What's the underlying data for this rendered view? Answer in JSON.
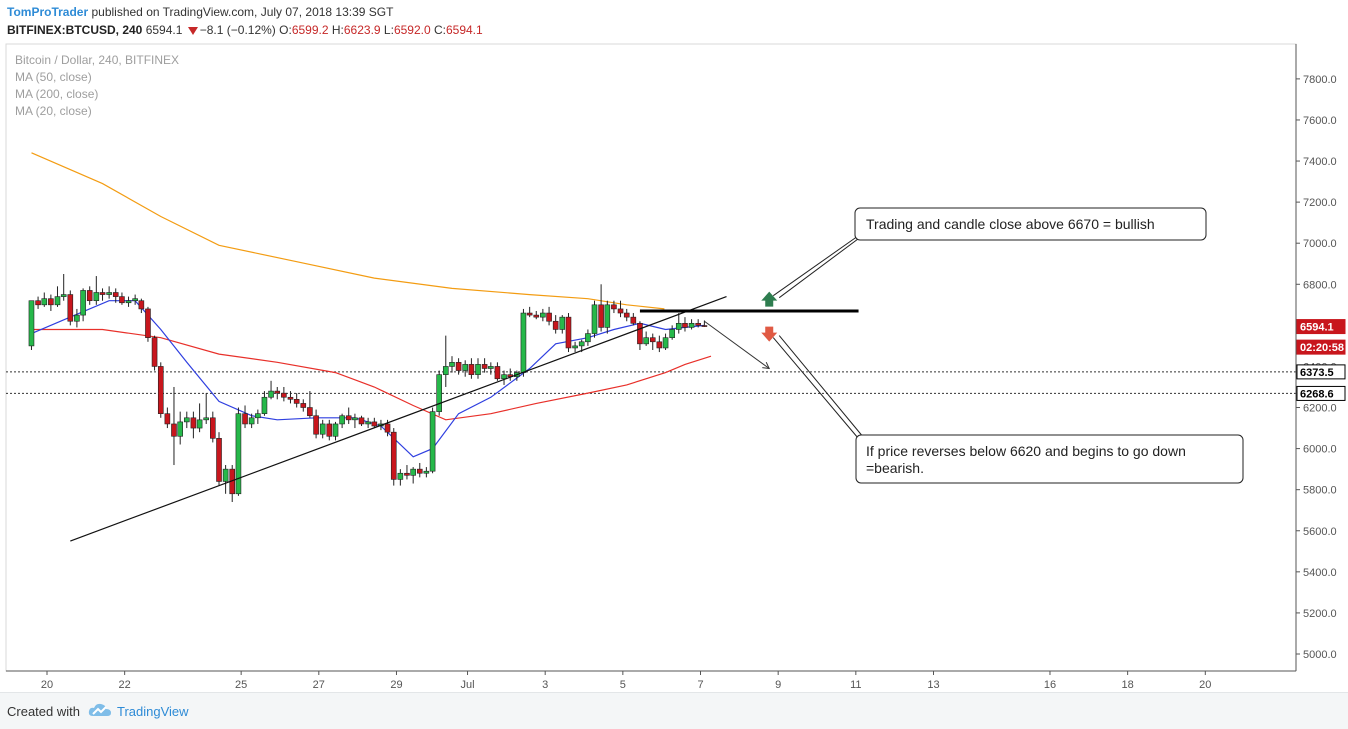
{
  "header": {
    "author": "TomProTrader",
    "published": "published on TradingView.com, July 07, 2018 13:39 SGT",
    "symbol": "BITFINEX:BTCUSD, 240",
    "last": "6594.1",
    "change": "−8.1 (−0.12%)",
    "open_label": "O:",
    "open": "6599.2",
    "high_label": "H:",
    "high": "6623.9",
    "low_label": "L:",
    "low": "6592.0",
    "close_label": "C:",
    "close": "6594.1"
  },
  "legend": {
    "title": "Bitcoin / Dollar, 240, BITFINEX",
    "ma50": "MA (50, close)",
    "ma200": "MA (200, close)",
    "ma20": "MA (20, close)"
  },
  "footer": {
    "created_with": "Created with",
    "brand": "TradingView"
  },
  "colors": {
    "up": "#26b84a",
    "down": "#c8161d",
    "wick": "#222222",
    "ma200": "#f39c12",
    "ma50": "#e8302a",
    "ma20": "#2f3fe0",
    "brand": "#2e8bd6",
    "arrow_up": "#2e7d4f",
    "arrow_down": "#e05a44"
  },
  "chart_data": {
    "type": "candlestick",
    "symbol": "BITFINEX:BTCUSD",
    "interval": "240",
    "y_range": [
      4900,
      8000
    ],
    "y_ticks": [
      "7800.0",
      "7600.0",
      "7400.0",
      "7200.0",
      "7000.0",
      "6800.0",
      "6600.0",
      "6400.0",
      "6200.0",
      "6000.0",
      "5800.0",
      "5600.0",
      "5400.0",
      "5200.0",
      "5000.0"
    ],
    "x_range": [
      19.6,
      22.0
    ],
    "x_ticks": [
      {
        "label": "20",
        "x": 20
      },
      {
        "label": "22",
        "x": 22
      },
      {
        "label": "25",
        "x": 25
      },
      {
        "label": "27",
        "x": 27
      },
      {
        "label": "29",
        "x": 29
      },
      {
        "label": "Jul",
        "x": 30.83
      },
      {
        "label": "3",
        "x": 32.83
      },
      {
        "label": "5",
        "x": 34.83
      },
      {
        "label": "7",
        "x": 36.83
      },
      {
        "label": "9",
        "x": 38.83
      },
      {
        "label": "11",
        "x": 40.83
      },
      {
        "label": "13",
        "x": 42.83
      },
      {
        "label": "16",
        "x": 45.83
      },
      {
        "label": "18",
        "x": 47.83
      },
      {
        "label": "20",
        "x": 49.83
      }
    ],
    "price_labels": [
      {
        "text": "6594.1",
        "value": 6594.1,
        "style": "current"
      },
      {
        "text": "02:20:58",
        "value": 6494,
        "style": "current"
      },
      {
        "text": "6373.5",
        "value": 6373.5,
        "style": "level"
      },
      {
        "text": "6268.6",
        "value": 6268.6,
        "style": "level"
      }
    ],
    "levels": [
      6373.5,
      6268.6
    ],
    "candles": [
      [
        19.6,
        6500,
        6720,
        6480,
        6720
      ],
      [
        19.77,
        6720,
        6740,
        6680,
        6700
      ],
      [
        19.93,
        6700,
        6760,
        6690,
        6730
      ],
      [
        20.1,
        6730,
        6750,
        6670,
        6700
      ],
      [
        20.27,
        6700,
        6790,
        6690,
        6740
      ],
      [
        20.43,
        6740,
        6850,
        6720,
        6750
      ],
      [
        20.6,
        6750,
        6770,
        6600,
        6620
      ],
      [
        20.77,
        6620,
        6680,
        6590,
        6650
      ],
      [
        20.93,
        6650,
        6780,
        6620,
        6770
      ],
      [
        21.1,
        6770,
        6790,
        6700,
        6720
      ],
      [
        21.27,
        6720,
        6840,
        6700,
        6760
      ],
      [
        21.43,
        6760,
        6780,
        6720,
        6750
      ],
      [
        21.6,
        6750,
        6790,
        6730,
        6760
      ],
      [
        21.77,
        6760,
        6780,
        6710,
        6740
      ],
      [
        21.93,
        6740,
        6760,
        6700,
        6710
      ],
      [
        22.1,
        6710,
        6740,
        6690,
        6720
      ],
      [
        22.27,
        6720,
        6750,
        6700,
        6730
      ],
      [
        22.43,
        6720,
        6730,
        6660,
        6680
      ],
      [
        22.6,
        6680,
        6690,
        6520,
        6540
      ],
      [
        22.77,
        6540,
        6550,
        6380,
        6400
      ],
      [
        22.93,
        6400,
        6420,
        6150,
        6170
      ],
      [
        23.1,
        6170,
        6200,
        6100,
        6120
      ],
      [
        23.27,
        6120,
        6300,
        5920,
        6060
      ],
      [
        23.43,
        6060,
        6180,
        6020,
        6130
      ],
      [
        23.6,
        6130,
        6180,
        6100,
        6150
      ],
      [
        23.77,
        6150,
        6180,
        6050,
        6100
      ],
      [
        23.93,
        6100,
        6220,
        6080,
        6140
      ],
      [
        24.1,
        6140,
        6270,
        6120,
        6150
      ],
      [
        24.27,
        6150,
        6180,
        6030,
        6050
      ],
      [
        24.43,
        6050,
        6080,
        5820,
        5840
      ],
      [
        24.6,
        5840,
        5920,
        5780,
        5900
      ],
      [
        24.77,
        5900,
        5920,
        5740,
        5780
      ],
      [
        24.93,
        5780,
        6200,
        5770,
        6170
      ],
      [
        25.1,
        6170,
        6210,
        6100,
        6120
      ],
      [
        25.27,
        6120,
        6170,
        6100,
        6150
      ],
      [
        25.43,
        6150,
        6190,
        6120,
        6170
      ],
      [
        25.6,
        6170,
        6280,
        6160,
        6250
      ],
      [
        25.77,
        6250,
        6330,
        6240,
        6280
      ],
      [
        25.93,
        6280,
        6300,
        6240,
        6270
      ],
      [
        26.1,
        6270,
        6300,
        6230,
        6250
      ],
      [
        26.27,
        6250,
        6280,
        6220,
        6240
      ],
      [
        26.43,
        6240,
        6270,
        6200,
        6220
      ],
      [
        26.6,
        6220,
        6240,
        6180,
        6200
      ],
      [
        26.77,
        6200,
        6280,
        6150,
        6160
      ],
      [
        26.93,
        6160,
        6190,
        6050,
        6070
      ],
      [
        27.1,
        6070,
        6140,
        6050,
        6120
      ],
      [
        27.27,
        6120,
        6140,
        6040,
        6060
      ],
      [
        27.43,
        6060,
        6130,
        6040,
        6120
      ],
      [
        27.6,
        6120,
        6170,
        6100,
        6160
      ],
      [
        27.77,
        6160,
        6200,
        6120,
        6140
      ],
      [
        27.93,
        6140,
        6170,
        6100,
        6150
      ],
      [
        28.1,
        6150,
        6160,
        6110,
        6120
      ],
      [
        28.27,
        6120,
        6150,
        6100,
        6130
      ],
      [
        28.43,
        6130,
        6150,
        6100,
        6110
      ],
      [
        28.6,
        6110,
        6140,
        6090,
        6120
      ],
      [
        28.77,
        6120,
        6140,
        6060,
        6080
      ],
      [
        28.93,
        6080,
        6100,
        5820,
        5850
      ],
      [
        29.1,
        5850,
        5900,
        5820,
        5880
      ],
      [
        29.27,
        5880,
        5920,
        5850,
        5870
      ],
      [
        29.43,
        5870,
        5910,
        5830,
        5900
      ],
      [
        29.6,
        5900,
        5930,
        5860,
        5880
      ],
      [
        29.77,
        5880,
        5910,
        5860,
        5890
      ],
      [
        29.93,
        5890,
        6200,
        5880,
        6180
      ],
      [
        30.1,
        6180,
        6380,
        6160,
        6360
      ],
      [
        30.27,
        6360,
        6550,
        6300,
        6400
      ],
      [
        30.43,
        6400,
        6450,
        6370,
        6420
      ],
      [
        30.6,
        6420,
        6440,
        6360,
        6380
      ],
      [
        30.77,
        6380,
        6430,
        6350,
        6410
      ],
      [
        30.93,
        6410,
        6440,
        6340,
        6360
      ],
      [
        31.1,
        6360,
        6440,
        6340,
        6410
      ],
      [
        31.27,
        6410,
        6440,
        6370,
        6390
      ],
      [
        31.43,
        6390,
        6420,
        6360,
        6400
      ],
      [
        31.6,
        6400,
        6420,
        6330,
        6340
      ],
      [
        31.77,
        6340,
        6380,
        6310,
        6360
      ],
      [
        31.93,
        6360,
        6390,
        6330,
        6350
      ],
      [
        32.1,
        6350,
        6380,
        6330,
        6370
      ],
      [
        32.27,
        6370,
        6680,
        6350,
        6660
      ],
      [
        32.43,
        6660,
        6690,
        6640,
        6650
      ],
      [
        32.6,
        6650,
        6670,
        6630,
        6640
      ],
      [
        32.77,
        6640,
        6680,
        6620,
        6660
      ],
      [
        32.93,
        6660,
        6690,
        6600,
        6620
      ],
      [
        33.1,
        6620,
        6650,
        6560,
        6580
      ],
      [
        33.27,
        6580,
        6650,
        6560,
        6640
      ],
      [
        33.43,
        6640,
        6660,
        6470,
        6490
      ],
      [
        33.6,
        6490,
        6520,
        6470,
        6500
      ],
      [
        33.77,
        6500,
        6530,
        6470,
        6520
      ],
      [
        33.93,
        6520,
        6580,
        6500,
        6560
      ],
      [
        34.1,
        6560,
        6720,
        6540,
        6700
      ],
      [
        34.27,
        6700,
        6800,
        6570,
        6590
      ],
      [
        34.43,
        6590,
        6720,
        6560,
        6700
      ],
      [
        34.6,
        6700,
        6720,
        6660,
        6680
      ],
      [
        34.77,
        6680,
        6720,
        6640,
        6660
      ],
      [
        34.93,
        6660,
        6680,
        6620,
        6640
      ],
      [
        35.1,
        6640,
        6660,
        6600,
        6610
      ],
      [
        35.27,
        6610,
        6620,
        6480,
        6510
      ],
      [
        35.43,
        6510,
        6570,
        6500,
        6540
      ],
      [
        35.6,
        6540,
        6560,
        6480,
        6520
      ],
      [
        35.77,
        6520,
        6550,
        6470,
        6490
      ],
      [
        35.93,
        6490,
        6560,
        6480,
        6540
      ],
      [
        36.1,
        6540,
        6600,
        6530,
        6580
      ],
      [
        36.27,
        6580,
        6660,
        6560,
        6610
      ],
      [
        36.43,
        6610,
        6640,
        6570,
        6590
      ],
      [
        36.6,
        6590,
        6630,
        6580,
        6610
      ],
      [
        36.77,
        6610,
        6630,
        6590,
        6600
      ],
      [
        36.93,
        6599.2,
        6623.9,
        6592.0,
        6594.1
      ]
    ],
    "ma_series": [
      {
        "name": "MA (200, close)",
        "color": "#f39c12",
        "points": [
          [
            19.6,
            7440
          ],
          [
            21.43,
            7290
          ],
          [
            22.93,
            7130
          ],
          [
            24.43,
            6990
          ],
          [
            26.43,
            6910
          ],
          [
            28.43,
            6830
          ],
          [
            30.43,
            6780
          ],
          [
            32.43,
            6750
          ],
          [
            33.93,
            6730
          ],
          [
            34.93,
            6700
          ],
          [
            35.9,
            6680
          ]
        ]
      },
      {
        "name": "MA (50, close)",
        "color": "#e8302a",
        "points": [
          [
            19.6,
            6580
          ],
          [
            21.43,
            6580
          ],
          [
            22.93,
            6540
          ],
          [
            24.43,
            6460
          ],
          [
            25.93,
            6420
          ],
          [
            27.43,
            6370
          ],
          [
            28.43,
            6300
          ],
          [
            29.43,
            6210
          ],
          [
            30.27,
            6140
          ],
          [
            31.43,
            6170
          ],
          [
            32.6,
            6220
          ],
          [
            33.93,
            6270
          ],
          [
            34.93,
            6310
          ],
          [
            35.93,
            6370
          ],
          [
            36.43,
            6410
          ],
          [
            37.1,
            6450
          ]
        ]
      },
      {
        "name": "MA (20, close)",
        "color": "#2f3fe0",
        "points": [
          [
            19.6,
            6560
          ],
          [
            20.6,
            6640
          ],
          [
            21.6,
            6720
          ],
          [
            22.27,
            6720
          ],
          [
            22.93,
            6580
          ],
          [
            23.6,
            6420
          ],
          [
            24.43,
            6230
          ],
          [
            25.27,
            6160
          ],
          [
            25.93,
            6140
          ],
          [
            26.93,
            6150
          ],
          [
            27.93,
            6150
          ],
          [
            28.6,
            6110
          ],
          [
            29.43,
            5960
          ],
          [
            29.93,
            6000
          ],
          [
            30.6,
            6170
          ],
          [
            31.43,
            6250
          ],
          [
            32.43,
            6390
          ],
          [
            33.1,
            6510
          ],
          [
            33.93,
            6540
          ],
          [
            34.6,
            6580
          ],
          [
            35.27,
            6610
          ],
          [
            35.93,
            6580
          ],
          [
            36.43,
            6590
          ],
          [
            36.93,
            6600
          ]
        ]
      }
    ],
    "drawings": {
      "trendline": [
        [
          20.6,
          5550
        ],
        [
          37.5,
          6740
        ]
      ],
      "resistance_line": [
        [
          35.27,
          6670
        ],
        [
          40.9,
          6670
        ]
      ],
      "projection": [
        [
          36.93,
          6620
        ],
        [
          38.6,
          6390
        ]
      ],
      "arrow_up_at": [
        38.6,
        6725
      ],
      "arrow_down_at": [
        38.6,
        6560
      ]
    },
    "annotations": [
      {
        "text": "Trading and candle close above 6670 = bullish",
        "anchor": [
          38.6,
          6745
        ]
      },
      {
        "text": "If price reverses below 6620 and begins to go down\n=bearish.",
        "anchor": [
          38.6,
          6520
        ]
      }
    ]
  }
}
